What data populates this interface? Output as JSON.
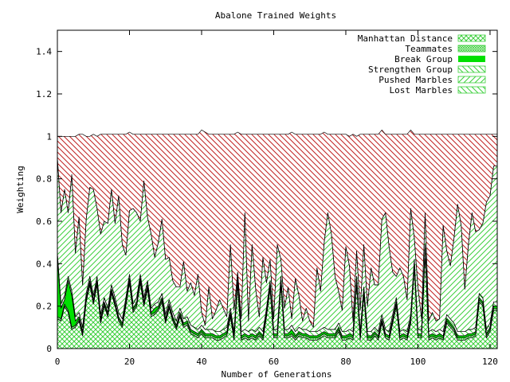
{
  "chart_data": {
    "type": "area",
    "title": "Abalone Trained Weights",
    "xlabel": "Number of Generations",
    "ylabel": "Weighting",
    "xlim": [
      0,
      122
    ],
    "ylim": [
      0,
      1.5
    ],
    "x_ticks": [
      0,
      20,
      40,
      60,
      80,
      100,
      120
    ],
    "y_ticks": [
      0,
      0.2,
      0.4,
      0.6,
      0.8,
      1,
      1.2,
      1.4
    ],
    "x_tick_labels": [
      "0",
      "20",
      "40",
      "60",
      "80",
      "100",
      "120"
    ],
    "y_tick_labels": [
      "0",
      "0.2",
      "0.4",
      "0.6",
      "0.8",
      "1",
      "1.2",
      "1.4"
    ],
    "grid": false,
    "legend_position": "top-right",
    "stacked": true,
    "x": [
      0,
      1,
      2,
      3,
      4,
      5,
      6,
      7,
      8,
      9,
      10,
      11,
      12,
      13,
      14,
      15,
      16,
      17,
      18,
      19,
      20,
      21,
      22,
      23,
      24,
      25,
      26,
      27,
      28,
      29,
      30,
      31,
      32,
      33,
      34,
      35,
      36,
      37,
      38,
      39,
      40,
      41,
      42,
      43,
      44,
      45,
      46,
      47,
      48,
      49,
      50,
      51,
      52,
      53,
      54,
      55,
      56,
      57,
      58,
      59,
      60,
      61,
      62,
      63,
      64,
      65,
      66,
      67,
      68,
      69,
      70,
      71,
      72,
      73,
      74,
      75,
      76,
      77,
      78,
      79,
      80,
      81,
      82,
      83,
      84,
      85,
      86,
      87,
      88,
      89,
      90,
      91,
      92,
      93,
      94,
      95,
      96,
      97,
      98,
      99,
      100,
      101,
      102,
      103,
      104,
      105,
      106,
      107,
      108,
      109,
      110,
      111,
      112,
      113,
      114,
      115,
      116,
      117,
      118,
      119,
      120,
      121,
      122
    ],
    "series": [
      {
        "name": "Manhattan Distance",
        "color": "#3ccf3c",
        "pattern": "crosshatch",
        "values": [
          0.14,
          0.13,
          0.2,
          0.17,
          0.09,
          0.1,
          0.13,
          0.06,
          0.22,
          0.3,
          0.21,
          0.3,
          0.12,
          0.2,
          0.15,
          0.26,
          0.2,
          0.13,
          0.1,
          0.2,
          0.31,
          0.17,
          0.2,
          0.31,
          0.2,
          0.28,
          0.15,
          0.16,
          0.18,
          0.22,
          0.12,
          0.19,
          0.13,
          0.09,
          0.15,
          0.1,
          0.11,
          0.07,
          0.06,
          0.05,
          0.07,
          0.05,
          0.05,
          0.05,
          0.04,
          0.04,
          0.05,
          0.06,
          0.15,
          0.04,
          0.3,
          0.04,
          0.05,
          0.04,
          0.05,
          0.04,
          0.06,
          0.04,
          0.15,
          0.28,
          0.05,
          0.05,
          0.3,
          0.05,
          0.05,
          0.06,
          0.04,
          0.06,
          0.05,
          0.05,
          0.04,
          0.04,
          0.04,
          0.05,
          0.06,
          0.05,
          0.05,
          0.05,
          0.08,
          0.04,
          0.04,
          0.05,
          0.04,
          0.3,
          0.04,
          0.25,
          0.04,
          0.04,
          0.06,
          0.04,
          0.12,
          0.05,
          0.04,
          0.12,
          0.2,
          0.04,
          0.05,
          0.04,
          0.12,
          0.38,
          0.05,
          0.05,
          0.45,
          0.04,
          0.05,
          0.04,
          0.05,
          0.04,
          0.12,
          0.1,
          0.08,
          0.04,
          0.04,
          0.04,
          0.05,
          0.05,
          0.06,
          0.22,
          0.2,
          0.05,
          0.08,
          0.18,
          0.18
        ]
      },
      {
        "name": "Teammates",
        "color": "#3ccf3c",
        "pattern": "dense-crosshatch",
        "values": [
          0.01,
          0.01,
          0.01,
          0.01,
          0.01,
          0.01,
          0.01,
          0.01,
          0.01,
          0.01,
          0.01,
          0.01,
          0.01,
          0.01,
          0.01,
          0.01,
          0.01,
          0.01,
          0.01,
          0.01,
          0.01,
          0.01,
          0.01,
          0.01,
          0.01,
          0.01,
          0.01,
          0.01,
          0.01,
          0.01,
          0.01,
          0.01,
          0.01,
          0.01,
          0.01,
          0.01,
          0.01,
          0.01,
          0.01,
          0.01,
          0.01,
          0.01,
          0.01,
          0.01,
          0.01,
          0.01,
          0.01,
          0.01,
          0.01,
          0.01,
          0.01,
          0.01,
          0.01,
          0.01,
          0.01,
          0.01,
          0.01,
          0.01,
          0.01,
          0.01,
          0.01,
          0.01,
          0.01,
          0.01,
          0.01,
          0.01,
          0.01,
          0.01,
          0.01,
          0.01,
          0.01,
          0.01,
          0.01,
          0.01,
          0.01,
          0.01,
          0.01,
          0.01,
          0.01,
          0.01,
          0.01,
          0.01,
          0.01,
          0.01,
          0.01,
          0.01,
          0.01,
          0.01,
          0.01,
          0.01,
          0.01,
          0.01,
          0.01,
          0.01,
          0.01,
          0.01,
          0.01,
          0.01,
          0.01,
          0.01,
          0.01,
          0.01,
          0.01,
          0.01,
          0.01,
          0.01,
          0.01,
          0.01,
          0.01,
          0.01,
          0.01,
          0.01,
          0.01,
          0.01,
          0.01,
          0.01,
          0.01,
          0.01,
          0.01,
          0.01,
          0.01,
          0.01,
          0.01
        ]
      },
      {
        "name": "Break Group",
        "color": "#00e000",
        "pattern": "solid",
        "values": [
          0.28,
          0.05,
          0.02,
          0.14,
          0.15,
          0.02,
          0.01,
          0.01,
          0.01,
          0.01,
          0.01,
          0.01,
          0.01,
          0.01,
          0.01,
          0.01,
          0.01,
          0.01,
          0.01,
          0.01,
          0.01,
          0.01,
          0.01,
          0.01,
          0.01,
          0.01,
          0.01,
          0.02,
          0.01,
          0.01,
          0.01,
          0.01,
          0.01,
          0.01,
          0.01,
          0.01,
          0.01,
          0.01,
          0.01,
          0.01,
          0.01,
          0.01,
          0.01,
          0.01,
          0.01,
          0.01,
          0.01,
          0.01,
          0.01,
          0.01,
          0.01,
          0.01,
          0.01,
          0.01,
          0.01,
          0.01,
          0.01,
          0.01,
          0.01,
          0.01,
          0.01,
          0.01,
          0.01,
          0.01,
          0.01,
          0.02,
          0.01,
          0.01,
          0.01,
          0.01,
          0.01,
          0.01,
          0.01,
          0.01,
          0.01,
          0.01,
          0.01,
          0.01,
          0.01,
          0.01,
          0.01,
          0.01,
          0.01,
          0.01,
          0.01,
          0.01,
          0.01,
          0.01,
          0.01,
          0.01,
          0.01,
          0.01,
          0.01,
          0.01,
          0.01,
          0.01,
          0.01,
          0.01,
          0.01,
          0.01,
          0.01,
          0.01,
          0.01,
          0.01,
          0.01,
          0.01,
          0.01,
          0.01,
          0.01,
          0.01,
          0.01,
          0.01,
          0.01,
          0.01,
          0.01,
          0.01,
          0.01,
          0.01,
          0.01,
          0.01,
          0.01,
          0.01,
          0.01
        ]
      },
      {
        "name": "Strengthen Group",
        "color": "#3ccf3c",
        "pattern": "hatch-down",
        "values": [
          0.02,
          0.02,
          0.02,
          0.02,
          0.02,
          0.02,
          0.02,
          0.02,
          0.02,
          0.02,
          0.02,
          0.02,
          0.02,
          0.02,
          0.02,
          0.02,
          0.02,
          0.02,
          0.02,
          0.02,
          0.02,
          0.02,
          0.02,
          0.02,
          0.02,
          0.02,
          0.02,
          0.02,
          0.02,
          0.02,
          0.02,
          0.02,
          0.02,
          0.02,
          0.02,
          0.02,
          0.02,
          0.02,
          0.02,
          0.02,
          0.02,
          0.02,
          0.02,
          0.02,
          0.02,
          0.02,
          0.02,
          0.02,
          0.02,
          0.02,
          0.02,
          0.02,
          0.02,
          0.02,
          0.02,
          0.02,
          0.02,
          0.02,
          0.02,
          0.02,
          0.02,
          0.02,
          0.02,
          0.02,
          0.02,
          0.02,
          0.02,
          0.02,
          0.02,
          0.02,
          0.02,
          0.02,
          0.02,
          0.02,
          0.02,
          0.02,
          0.02,
          0.02,
          0.02,
          0.02,
          0.02,
          0.02,
          0.02,
          0.02,
          0.02,
          0.02,
          0.02,
          0.02,
          0.02,
          0.02,
          0.02,
          0.02,
          0.02,
          0.02,
          0.02,
          0.02,
          0.02,
          0.02,
          0.02,
          0.02,
          0.02,
          0.02,
          0.02,
          0.02,
          0.02,
          0.02,
          0.02,
          0.02,
          0.02,
          0.02,
          0.02,
          0.02,
          0.02,
          0.02,
          0.02,
          0.02,
          0.02,
          0.02,
          0.02,
          0.02,
          0.02,
          0.02,
          0.02
        ]
      },
      {
        "name": "Pushed Marbles",
        "color": "#3ccf3c",
        "pattern": "hatch-up",
        "values": [
          0.45,
          0.43,
          0.5,
          0.3,
          0.55,
          0.3,
          0.45,
          0.2,
          0.35,
          0.42,
          0.5,
          0.32,
          0.38,
          0.36,
          0.4,
          0.45,
          0.35,
          0.55,
          0.35,
          0.2,
          0.3,
          0.45,
          0.4,
          0.25,
          0.55,
          0.3,
          0.35,
          0.22,
          0.28,
          0.35,
          0.26,
          0.2,
          0.15,
          0.16,
          0.1,
          0.27,
          0.12,
          0.2,
          0.15,
          0.26,
          0.06,
          0.02,
          0.2,
          0.05,
          0.1,
          0.15,
          0.1,
          0.05,
          0.3,
          0.1,
          0.02,
          0.06,
          0.55,
          0.05,
          0.4,
          0.2,
          0.05,
          0.35,
          0.12,
          0.1,
          0.05,
          0.4,
          0.08,
          0.1,
          0.2,
          0.03,
          0.25,
          0.15,
          0.04,
          0.1,
          0.05,
          0.02,
          0.3,
          0.18,
          0.4,
          0.55,
          0.45,
          0.25,
          0.15,
          0.1,
          0.4,
          0.3,
          0.05,
          0.12,
          0.1,
          0.2,
          0.12,
          0.3,
          0.2,
          0.22,
          0.45,
          0.55,
          0.4,
          0.2,
          0.1,
          0.3,
          0.25,
          0.15,
          0.5,
          0.1,
          0.2,
          0.05,
          0.15,
          0.05,
          0.08,
          0.05,
          0.05,
          0.5,
          0.3,
          0.25,
          0.4,
          0.6,
          0.5,
          0.2,
          0.4,
          0.55,
          0.45,
          0.3,
          0.35,
          0.6,
          0.6,
          0.64,
          0.64
        ]
      },
      {
        "name": "Lost Marbles",
        "color": "#c02020",
        "pattern": "hatch-red",
        "values": [
          0.1,
          0.36,
          0.25,
          0.36,
          0.18,
          0.55,
          0.39,
          0.71,
          0.39,
          0.24,
          0.26,
          0.34,
          0.47,
          0.41,
          0.42,
          0.26,
          0.42,
          0.29,
          0.52,
          0.57,
          0.37,
          0.35,
          0.37,
          0.41,
          0.22,
          0.39,
          0.47,
          0.58,
          0.51,
          0.4,
          0.59,
          0.58,
          0.69,
          0.72,
          0.72,
          0.6,
          0.74,
          0.7,
          0.76,
          0.66,
          0.86,
          0.91,
          0.72,
          0.87,
          0.83,
          0.78,
          0.82,
          0.86,
          0.52,
          0.83,
          0.66,
          0.87,
          0.37,
          0.88,
          0.52,
          0.73,
          0.86,
          0.58,
          0.7,
          0.59,
          0.87,
          0.52,
          0.59,
          0.82,
          0.72,
          0.88,
          0.68,
          0.76,
          0.88,
          0.82,
          0.88,
          0.91,
          0.63,
          0.74,
          0.52,
          0.37,
          0.47,
          0.67,
          0.74,
          0.83,
          0.53,
          0.61,
          0.88,
          0.54,
          0.83,
          0.52,
          0.81,
          0.63,
          0.71,
          0.71,
          0.42,
          0.37,
          0.53,
          0.65,
          0.67,
          0.63,
          0.67,
          0.78,
          0.37,
          0.49,
          0.72,
          0.87,
          0.37,
          0.88,
          0.84,
          0.88,
          0.87,
          0.43,
          0.55,
          0.62,
          0.49,
          0.33,
          0.43,
          0.73,
          0.52,
          0.37,
          0.46,
          0.45,
          0.42,
          0.32,
          0.29,
          0.15,
          0.15
        ]
      }
    ]
  }
}
